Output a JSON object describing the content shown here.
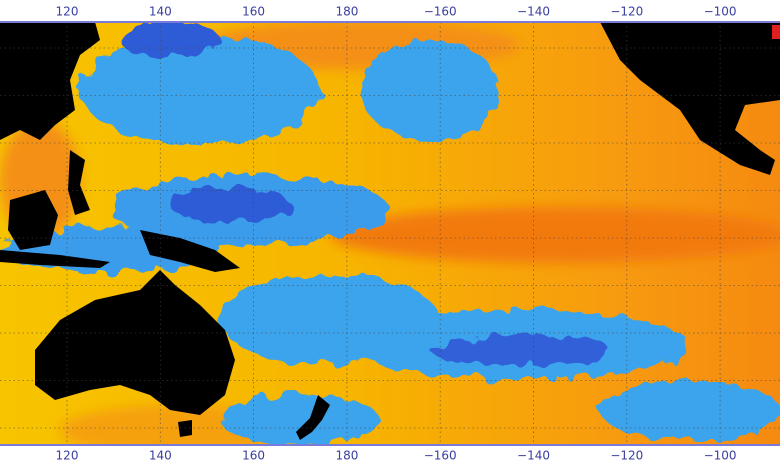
{
  "map": {
    "longitude_labels": [
      "120",
      "140",
      "160",
      "180",
      "−160",
      "−140",
      "−120",
      "−100"
    ]
  }
}
